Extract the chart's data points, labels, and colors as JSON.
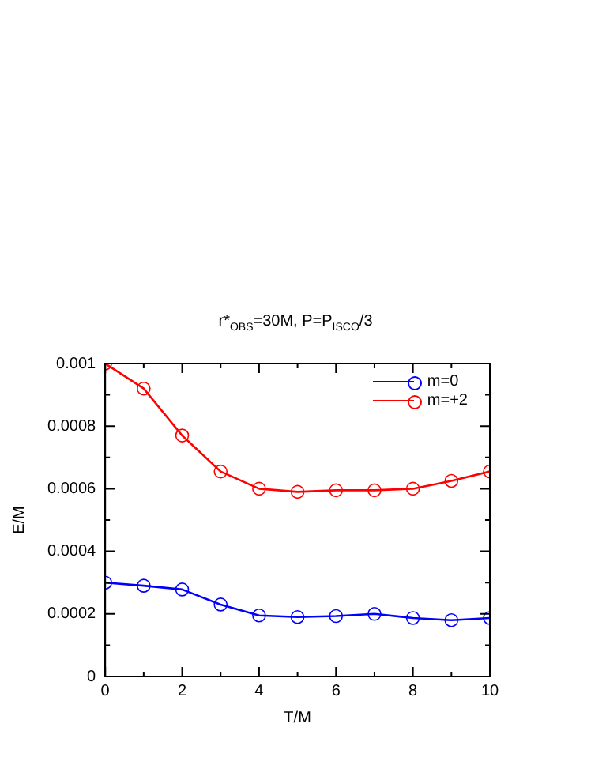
{
  "chart_data": {
    "type": "line",
    "title": "r*$_{OBS}$=30M, P=P$_{ISCO}$/3",
    "xlabel": "T/M",
    "ylabel": "E/M",
    "x": [
      0,
      1,
      2,
      3,
      4,
      5,
      6,
      7,
      8,
      9,
      10
    ],
    "series": [
      {
        "name": "m=0",
        "color": "#0000ff",
        "values": [
          0.0003,
          0.00029,
          0.000278,
          0.00023,
          0.000195,
          0.00019,
          0.000193,
          0.0002,
          0.000187,
          0.00018,
          0.000187
        ]
      },
      {
        "name": "m=+2",
        "color": "#ff0000",
        "values": [
          0.001,
          0.00092,
          0.00077,
          0.000655,
          0.0006,
          0.00059,
          0.000595,
          0.000595,
          0.0006,
          0.000625,
          0.000655
        ]
      }
    ],
    "xlim": [
      0,
      10
    ],
    "xticks": [
      0,
      {
        "value": 1,
        "label": null
      },
      2,
      {
        "value": 3,
        "label": null
      },
      4,
      {
        "value": 5,
        "label": null
      },
      6,
      {
        "value": 7,
        "label": null
      },
      8,
      {
        "value": 9,
        "label": null
      },
      10
    ],
    "ylim": [
      0,
      0.001
    ],
    "yticks": [
      0,
      {
        "value": 0.0001,
        "label": null
      },
      0.0002,
      {
        "value": 0.0003,
        "label": null
      },
      0.0004,
      {
        "value": 0.0005,
        "label": null
      },
      0.0006,
      {
        "value": 0.0007,
        "label": null
      },
      0.0008,
      {
        "value": 0.0009,
        "label": null
      },
      0.001
    ],
    "grid": false,
    "legend": "top right",
    "marker": "circle",
    "line_style": "solid"
  }
}
